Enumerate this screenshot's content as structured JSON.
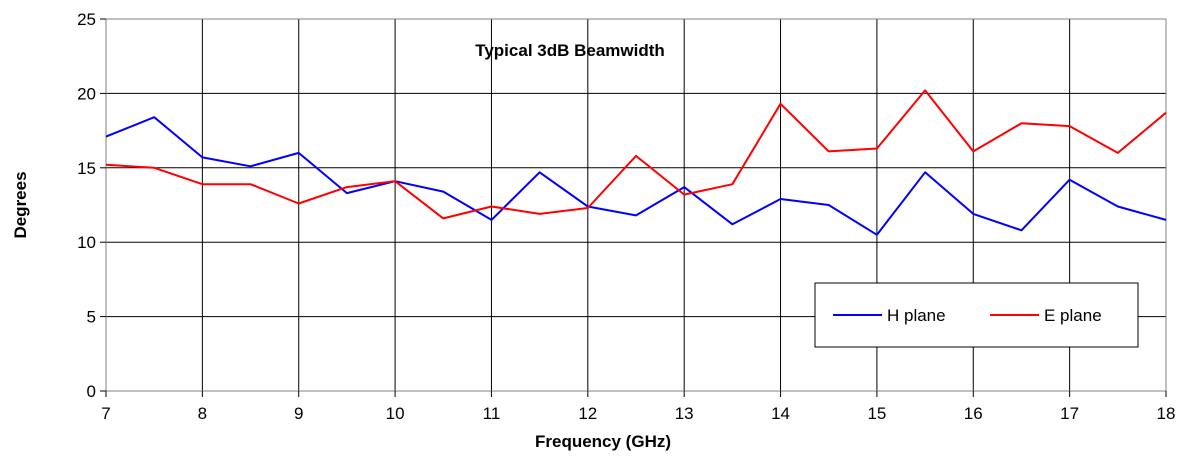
{
  "chart_data": {
    "type": "line",
    "title": "Typical 3dB Beamwidth",
    "xlabel": "Frequency (GHz)",
    "ylabel": "Degrees",
    "xlim": [
      7,
      18
    ],
    "ylim": [
      0,
      25
    ],
    "x_ticks": [
      7,
      8,
      9,
      10,
      11,
      12,
      13,
      14,
      15,
      16,
      17,
      18
    ],
    "y_ticks": [
      0,
      5,
      10,
      15,
      20,
      25
    ],
    "grid": true,
    "legend_position": "bottom-right",
    "x": [
      7,
      7.5,
      8,
      8.5,
      9,
      9.5,
      10,
      10.5,
      11,
      11.5,
      12,
      12.5,
      13,
      13.5,
      14,
      14.5,
      15,
      15.5,
      16,
      16.5,
      17,
      17.5,
      18
    ],
    "series": [
      {
        "name": "H plane",
        "color": "#0000ff",
        "values": [
          17.1,
          18.4,
          15.7,
          15.1,
          16.0,
          13.3,
          14.1,
          13.4,
          11.5,
          14.7,
          12.4,
          11.8,
          13.7,
          11.2,
          12.9,
          12.5,
          10.5,
          14.7,
          11.9,
          10.8,
          14.2,
          12.4,
          11.5
        ]
      },
      {
        "name": "E plane",
        "color": "#ff0000",
        "values": [
          15.2,
          15.0,
          13.9,
          13.9,
          12.6,
          13.7,
          14.1,
          11.6,
          12.4,
          11.9,
          12.3,
          15.8,
          13.2,
          13.9,
          19.3,
          16.1,
          16.3,
          20.2,
          16.1,
          18.0,
          17.8,
          16.0,
          18.7
        ]
      }
    ]
  }
}
